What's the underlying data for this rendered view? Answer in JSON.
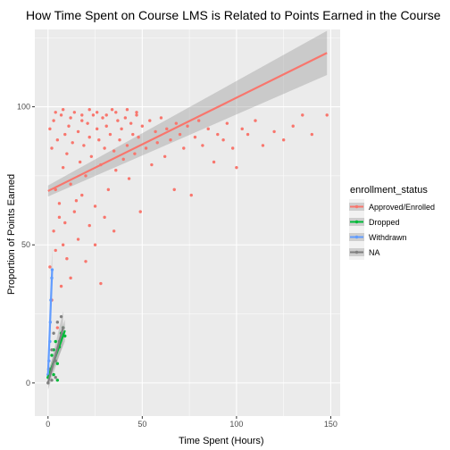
{
  "chart_data": {
    "type": "scatter",
    "title": "How Time Spent on Course LMS is Related to Points Earned in the Course",
    "xlabel": "Time Spent (Hours)",
    "ylabel": "Proportion of Points Earned",
    "xlim": [
      -7,
      155
    ],
    "ylim": [
      -12,
      128
    ],
    "xticks": [
      0,
      50,
      100,
      150
    ],
    "yticks": [
      0,
      50,
      100
    ],
    "grid": true,
    "background": "#ebebeb",
    "legend": {
      "title": "enrollment_status",
      "placement": "right",
      "entries": [
        "Approved/Enrolled",
        "Dropped",
        "Withdrawn",
        "NA"
      ]
    },
    "series": [
      {
        "name": "Approved/Enrolled",
        "color": "#f8766d",
        "fit": {
          "x": [
            0,
            148
          ],
          "y": [
            69.5,
            119.5
          ],
          "se_start": 2.0,
          "se_end": 8.0
        },
        "points": [
          [
            1,
            92
          ],
          [
            2,
            85
          ],
          [
            3,
            95
          ],
          [
            4,
            70
          ],
          [
            5,
            88
          ],
          [
            6,
            60
          ],
          [
            7,
            97
          ],
          [
            8,
            78
          ],
          [
            9,
            90
          ],
          [
            10,
            83
          ],
          [
            11,
            93
          ],
          [
            12,
            72
          ],
          [
            13,
            87
          ],
          [
            14,
            98
          ],
          [
            15,
            66
          ],
          [
            16,
            91
          ],
          [
            17,
            80
          ],
          [
            18,
            95
          ],
          [
            19,
            86
          ],
          [
            20,
            75
          ],
          [
            21,
            94
          ],
          [
            22,
            89
          ],
          [
            23,
            82
          ],
          [
            24,
            97
          ],
          [
            25,
            64
          ],
          [
            26,
            92
          ],
          [
            27,
            88
          ],
          [
            28,
            79
          ],
          [
            29,
            96
          ],
          [
            30,
            85
          ],
          [
            31,
            93
          ],
          [
            32,
            70
          ],
          [
            33,
            90
          ],
          [
            34,
            99
          ],
          [
            35,
            84
          ],
          [
            36,
            77
          ],
          [
            37,
            95
          ],
          [
            38,
            88
          ],
          [
            39,
            92
          ],
          [
            40,
            81
          ],
          [
            41,
            96
          ],
          [
            42,
            86
          ],
          [
            43,
            74
          ],
          [
            44,
            94
          ],
          [
            45,
            90
          ],
          [
            46,
            83
          ],
          [
            47,
            97
          ],
          [
            48,
            89
          ],
          [
            49,
            62
          ],
          [
            50,
            93
          ],
          [
            52,
            85
          ],
          [
            54,
            95
          ],
          [
            55,
            79
          ],
          [
            57,
            91
          ],
          [
            58,
            87
          ],
          [
            60,
            96
          ],
          [
            62,
            82
          ],
          [
            63,
            92
          ],
          [
            65,
            88
          ],
          [
            67,
            70
          ],
          [
            68,
            94
          ],
          [
            70,
            90
          ],
          [
            72,
            85
          ],
          [
            74,
            93
          ],
          [
            76,
            68
          ],
          [
            78,
            89
          ],
          [
            80,
            95
          ],
          [
            82,
            86
          ],
          [
            85,
            92
          ],
          [
            88,
            80
          ],
          [
            90,
            90
          ],
          [
            93,
            88
          ],
          [
            95,
            94
          ],
          [
            98,
            85
          ],
          [
            100,
            78
          ],
          [
            103,
            92
          ],
          [
            106,
            90
          ],
          [
            110,
            95
          ],
          [
            114,
            86
          ],
          [
            120,
            91
          ],
          [
            125,
            88
          ],
          [
            130,
            93
          ],
          [
            135,
            97
          ],
          [
            140,
            90
          ],
          [
            148,
            97
          ],
          [
            1,
            42
          ],
          [
            2,
            30
          ],
          [
            3,
            55
          ],
          [
            4,
            48
          ],
          [
            5,
            20
          ],
          [
            6,
            65
          ],
          [
            7,
            35
          ],
          [
            8,
            50
          ],
          [
            9,
            58
          ],
          [
            10,
            45
          ],
          [
            12,
            38
          ],
          [
            14,
            62
          ],
          [
            16,
            52
          ],
          [
            18,
            68
          ],
          [
            20,
            44
          ],
          [
            22,
            57
          ],
          [
            25,
            50
          ],
          [
            28,
            36
          ],
          [
            30,
            60
          ],
          [
            35,
            55
          ],
          [
            4,
            98
          ],
          [
            8,
            99
          ],
          [
            12,
            96
          ],
          [
            18,
            97
          ],
          [
            22,
            99
          ],
          [
            26,
            98
          ],
          [
            31,
            97
          ],
          [
            36,
            98
          ],
          [
            42,
            99
          ],
          [
            47,
            98
          ]
        ]
      },
      {
        "name": "Dropped",
        "color": "#00ba38",
        "fit": {
          "x": [
            0,
            9
          ],
          "y": [
            2,
            19
          ],
          "se_start": 2.0,
          "se_end": 4.0
        },
        "points": [
          [
            0,
            2
          ],
          [
            1,
            5
          ],
          [
            2,
            10
          ],
          [
            3,
            12
          ],
          [
            4,
            15
          ],
          [
            5,
            7
          ],
          [
            6,
            13
          ],
          [
            7,
            18
          ],
          [
            8,
            20
          ],
          [
            9,
            17
          ],
          [
            5,
            1
          ],
          [
            3,
            3
          ]
        ]
      },
      {
        "name": "Withdrawn",
        "color": "#619cff",
        "fit": {
          "x": [
            0,
            2.2
          ],
          "y": [
            3,
            41
          ],
          "se_start": 3.0,
          "se_end": 8.0
        },
        "points": [
          [
            0,
            3
          ],
          [
            0.5,
            8
          ],
          [
            1,
            15
          ],
          [
            1.5,
            30
          ],
          [
            2,
            38
          ],
          [
            2.2,
            41
          ],
          [
            0.3,
            5
          ],
          [
            1.2,
            22
          ]
        ]
      },
      {
        "name": "NA",
        "color": "#808080",
        "fit": {
          "x": [
            0,
            8
          ],
          "y": [
            0,
            20
          ],
          "se_start": 2.5,
          "se_end": 6.0
        },
        "points": [
          [
            0,
            0
          ],
          [
            1,
            5
          ],
          [
            2,
            12
          ],
          [
            3,
            18
          ],
          [
            4,
            8
          ],
          [
            5,
            22
          ],
          [
            6,
            15
          ],
          [
            7,
            24
          ],
          [
            8,
            20
          ],
          [
            4,
            2
          ],
          [
            2,
            1
          ]
        ]
      }
    ]
  }
}
